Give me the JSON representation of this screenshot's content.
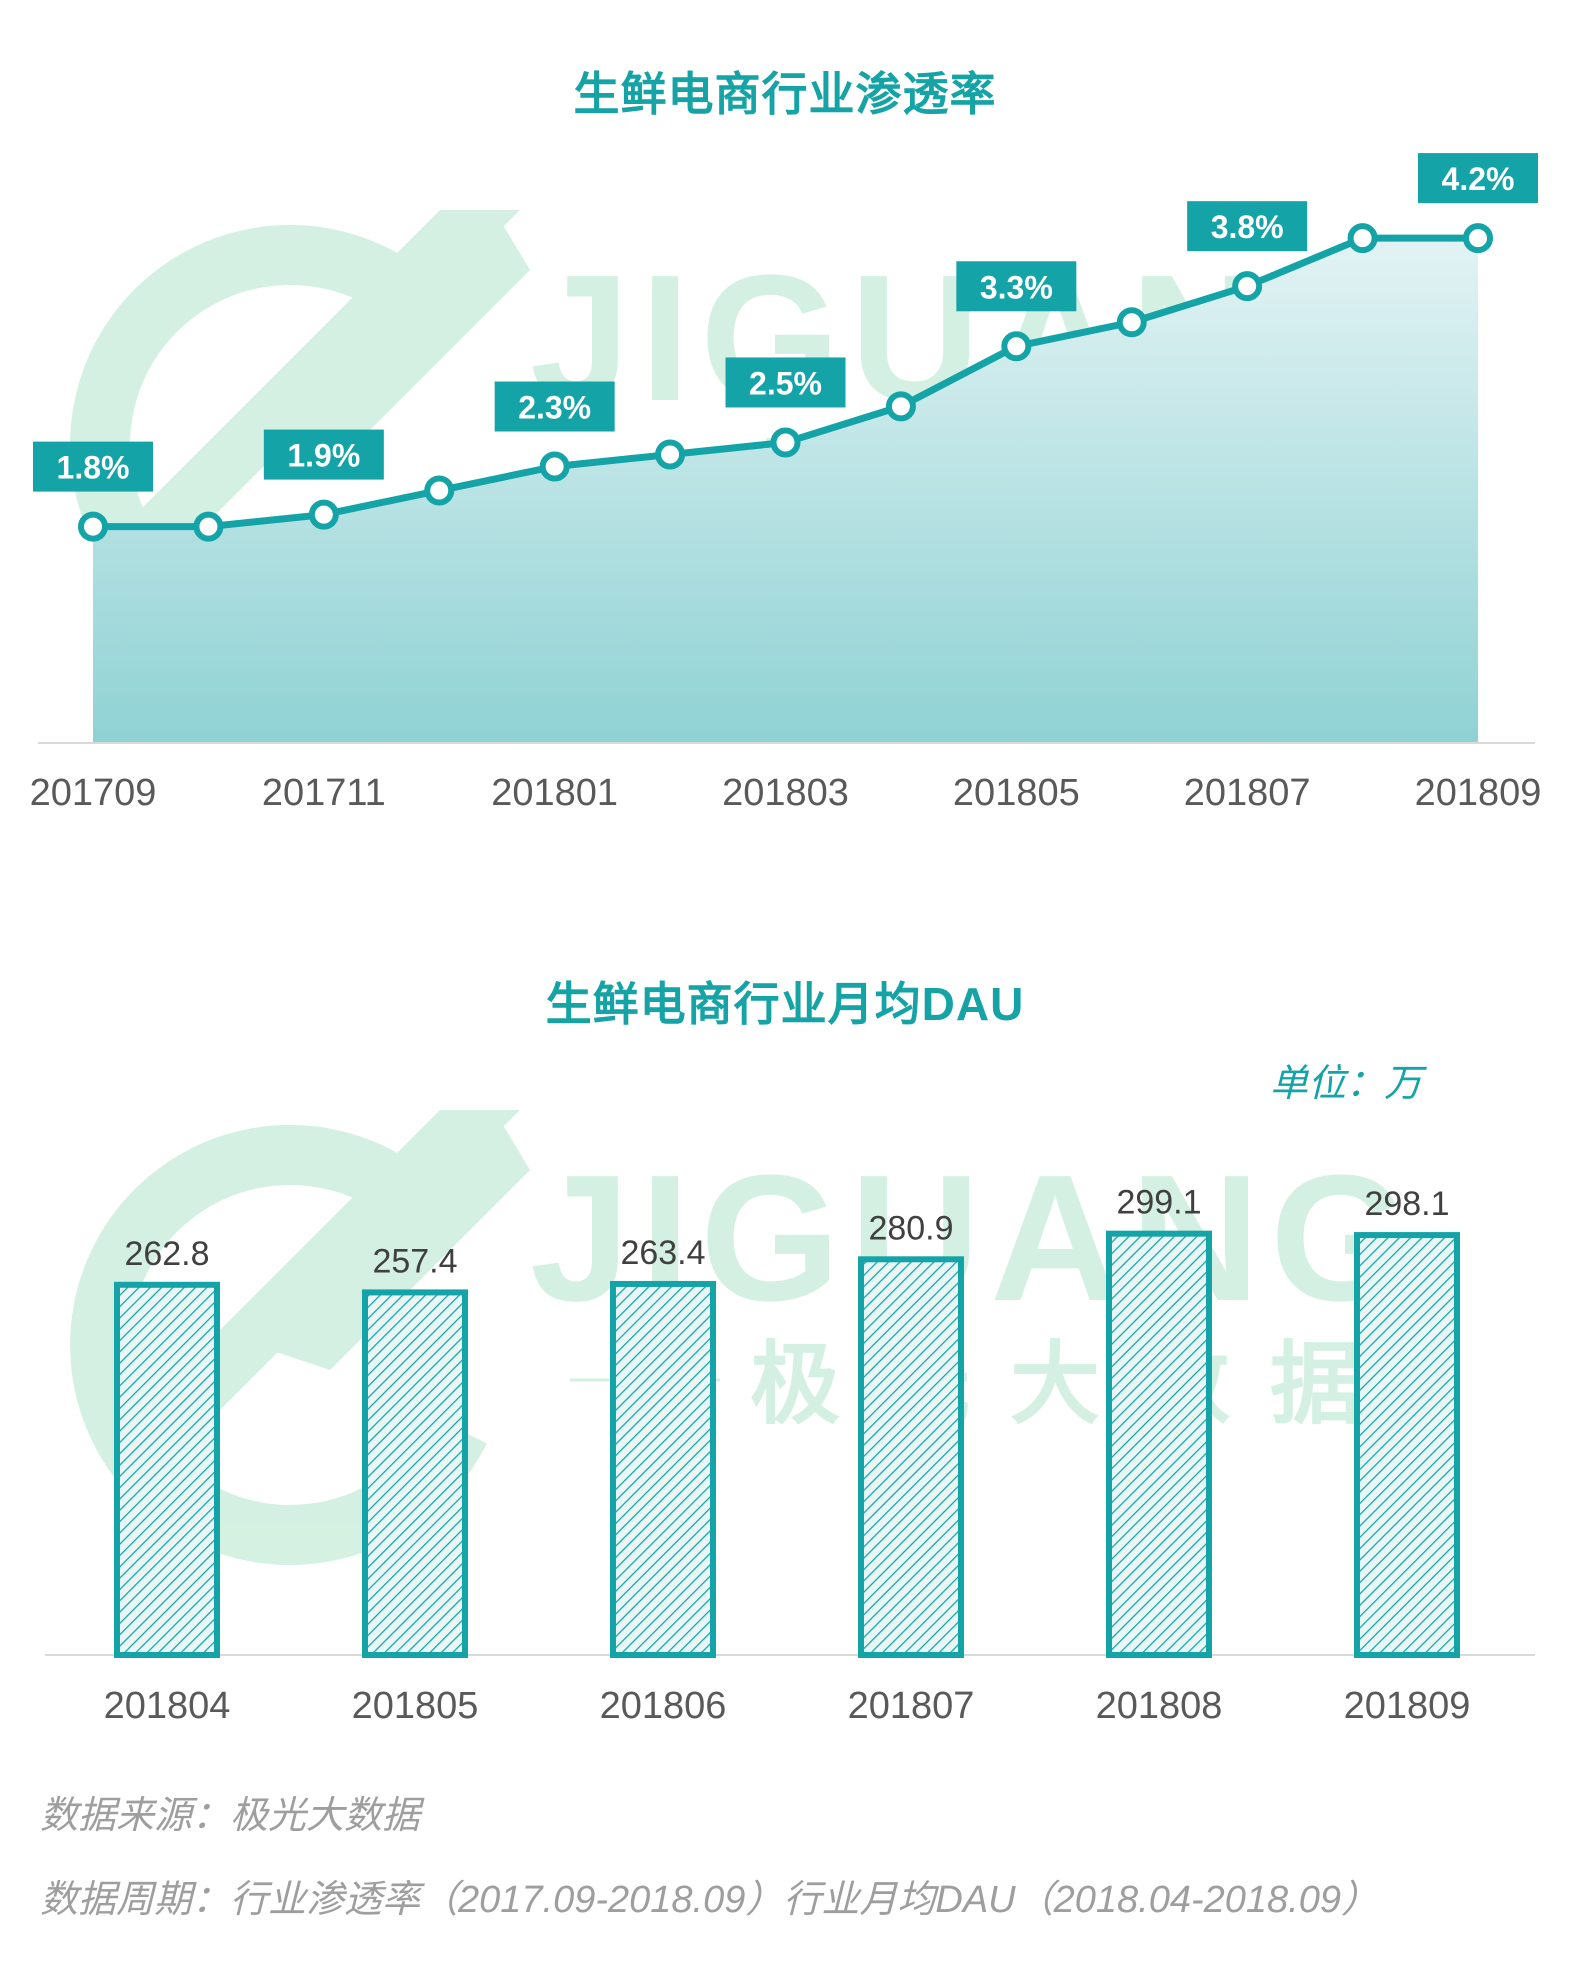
{
  "source_label": "数据来源：极光大数据",
  "period_label": "数据周期：行业渗透率（2017.09-2018.09）行业月均DAU（2018.04-2018.09）",
  "watermark": {
    "brand": "JIGUANG",
    "cn": "极光大数据"
  },
  "colors": {
    "accent": "#14a3a6",
    "area_top": "#e3f3f4",
    "area_bottom": "#8fd2d4",
    "bar_fill": "#e9f6f6",
    "watermark": "#cdeedd"
  },
  "chart_data": [
    {
      "type": "area",
      "title": "生鲜电商行业渗透率",
      "x": [
        "201709",
        "201710",
        "201711",
        "201712",
        "201801",
        "201802",
        "201803",
        "201804",
        "201805",
        "201806",
        "201807",
        "201808",
        "201809"
      ],
      "tick_labels": [
        "201709",
        "201711",
        "201801",
        "201803",
        "201805",
        "201807",
        "201809"
      ],
      "values": [
        1.8,
        1.8,
        1.9,
        2.1,
        2.3,
        2.4,
        2.5,
        2.8,
        3.3,
        3.5,
        3.8,
        4.2,
        4.2
      ],
      "data_labels": [
        {
          "x": "201709",
          "text": "1.8%"
        },
        {
          "x": "201711",
          "text": "1.9%"
        },
        {
          "x": "201801",
          "text": "2.3%"
        },
        {
          "x": "201803",
          "text": "2.5%"
        },
        {
          "x": "201805",
          "text": "3.3%"
        },
        {
          "x": "201807",
          "text": "3.8%"
        },
        {
          "x": "201809",
          "text": "4.2%"
        }
      ],
      "ylim": [
        0,
        4.6
      ],
      "grid": false
    },
    {
      "type": "bar",
      "title": "生鲜电商行业月均DAU",
      "unit": "单位：万",
      "categories": [
        "201804",
        "201805",
        "201806",
        "201807",
        "201808",
        "201809"
      ],
      "values": [
        262.8,
        257.4,
        263.4,
        280.9,
        299.1,
        298.1
      ],
      "ylim": [
        0,
        323
      ],
      "grid": false
    }
  ]
}
